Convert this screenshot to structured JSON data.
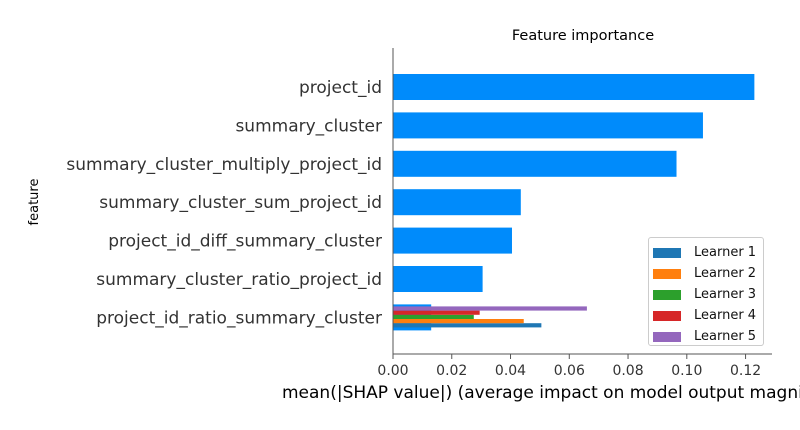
{
  "chart_data": {
    "type": "bar",
    "title": "Feature importance",
    "xlabel": "mean(|SHAP value|) (average impact on model output magnitude)",
    "ylabel": "feature",
    "xlim": [
      0,
      0.129
    ],
    "xticks": [
      "0.00",
      "0.02",
      "0.04",
      "0.06",
      "0.08",
      "0.10",
      "0.12"
    ],
    "grid": false,
    "legend_position": "lower-right",
    "categories": [
      "project_id",
      "summary_cluster",
      "summary_cluster_multiply_project_id",
      "summary_cluster_sum_project_id",
      "project_id_diff_summary_cluster",
      "summary_cluster_ratio_project_id",
      "project_id_ratio_summary_cluster"
    ],
    "aggregate": {
      "color": "#008bfb",
      "values": [
        0.123,
        0.1055,
        0.0965,
        0.0435,
        0.0405,
        0.0305,
        0.013
      ]
    },
    "series": [
      {
        "name": "Learner 1",
        "color": "#1f77b4",
        "values": [
          null,
          null,
          null,
          null,
          null,
          null,
          0.0505
        ]
      },
      {
        "name": "Learner 2",
        "color": "#ff7f0e",
        "values": [
          null,
          null,
          null,
          null,
          null,
          null,
          0.0445
        ]
      },
      {
        "name": "Learner 3",
        "color": "#2ca02c",
        "values": [
          null,
          null,
          null,
          null,
          null,
          null,
          0.0275
        ]
      },
      {
        "name": "Learner 4",
        "color": "#d62728",
        "values": [
          null,
          null,
          null,
          null,
          null,
          null,
          0.0295
        ]
      },
      {
        "name": "Learner 5",
        "color": "#9467bd",
        "values": [
          null,
          null,
          null,
          null,
          null,
          null,
          0.066
        ]
      }
    ]
  }
}
